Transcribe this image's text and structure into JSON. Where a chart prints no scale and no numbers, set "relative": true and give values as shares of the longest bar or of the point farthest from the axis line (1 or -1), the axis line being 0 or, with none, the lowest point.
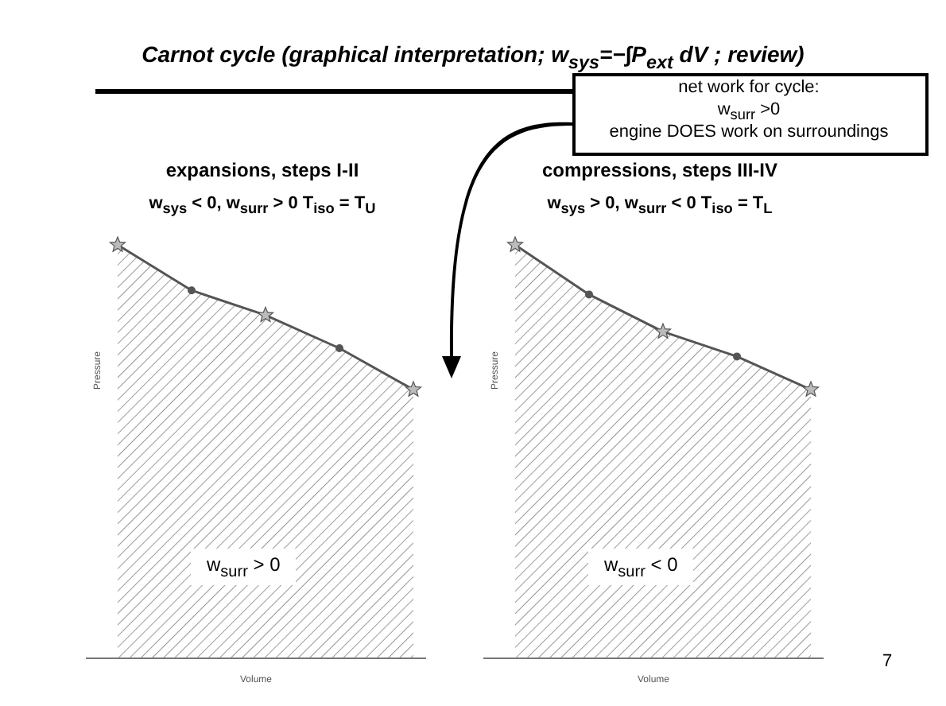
{
  "chart_data": [
    {
      "type": "other",
      "title": "Carnot cycle (graphical interpretation; w$_{sys}$=−∫P$_{ext}$ dV ;   review)",
      "annotations": [
        "net work for cycle:",
        "w$_{surr}$ >0",
        "engine DOES work on surroundings",
        "7"
      ]
    },
    {
      "type": "area",
      "title": "expansions, steps I-II",
      "subtitle": "w$_{sys}$ <  0, w$_{surr}$ > 0   T$_{iso}$ = T$_{U}$",
      "xlabel": "Volume",
      "ylabel": "Pressure",
      "relative": true,
      "categories": [
        null,
        null,
        null,
        null,
        null
      ],
      "values": [
        1,
        0.89,
        0.83,
        0.75,
        0.65
      ],
      "color": "#555555",
      "marker": "star",
      "annotations": [
        "w$_{surr}$ > 0"
      ]
    },
    {
      "type": "area",
      "title": "compressions, steps III-IV",
      "subtitle": "w$_{sys}$ > 0, w$_{surr}$ < 0   T$_{iso}$ = T$_{L}$",
      "xlabel": "Volume",
      "ylabel": "Pressure",
      "relative": true,
      "categories": [
        null,
        null,
        null,
        null,
        null
      ],
      "values": [
        1,
        0.88,
        0.79,
        0.73,
        0.65
      ],
      "color": "#555555",
      "marker": "star",
      "annotations": [
        "w$_{surr}$ < 0"
      ]
    }
  ]
}
